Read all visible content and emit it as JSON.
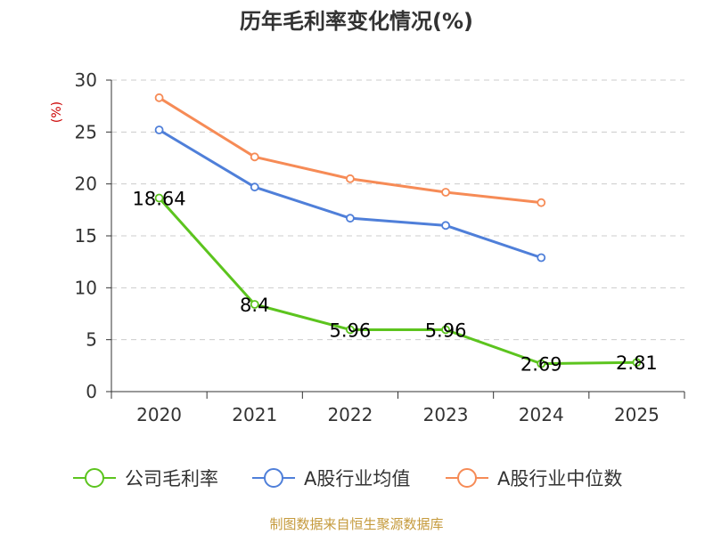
{
  "chart_data": {
    "type": "line",
    "title": "历年毛利率变化情况(%)",
    "ylabel": "(%)",
    "xlabel": "",
    "categories": [
      "2020",
      "2021",
      "2022",
      "2023",
      "2024",
      "2025"
    ],
    "ylim": [
      0,
      30
    ],
    "yticks": [
      0,
      5,
      10,
      15,
      20,
      25,
      30
    ],
    "grid": true,
    "legend_position": "bottom",
    "series": [
      {
        "name": "公司毛利率",
        "color": "#5cc41e",
        "values": [
          18.64,
          8.4,
          5.96,
          5.96,
          2.69,
          2.81
        ],
        "data_labels": [
          "18.64",
          "8.4",
          "5.96",
          "5.96",
          "2.69",
          "2.81"
        ]
      },
      {
        "name": "A股行业均值",
        "color": "#4f7fd9",
        "values": [
          25.2,
          19.7,
          16.7,
          16.0,
          12.9,
          null
        ]
      },
      {
        "name": "A股行业中位数",
        "color": "#f68b56",
        "values": [
          28.3,
          22.6,
          20.5,
          19.2,
          18.2,
          null
        ]
      }
    ]
  },
  "footer": {
    "source": "制图数据来自恒生聚源数据库",
    "source_color": "#c59a3c"
  },
  "colors": {
    "axis": "#333333",
    "grid": "#cccccc",
    "unit": "#cc0000"
  }
}
